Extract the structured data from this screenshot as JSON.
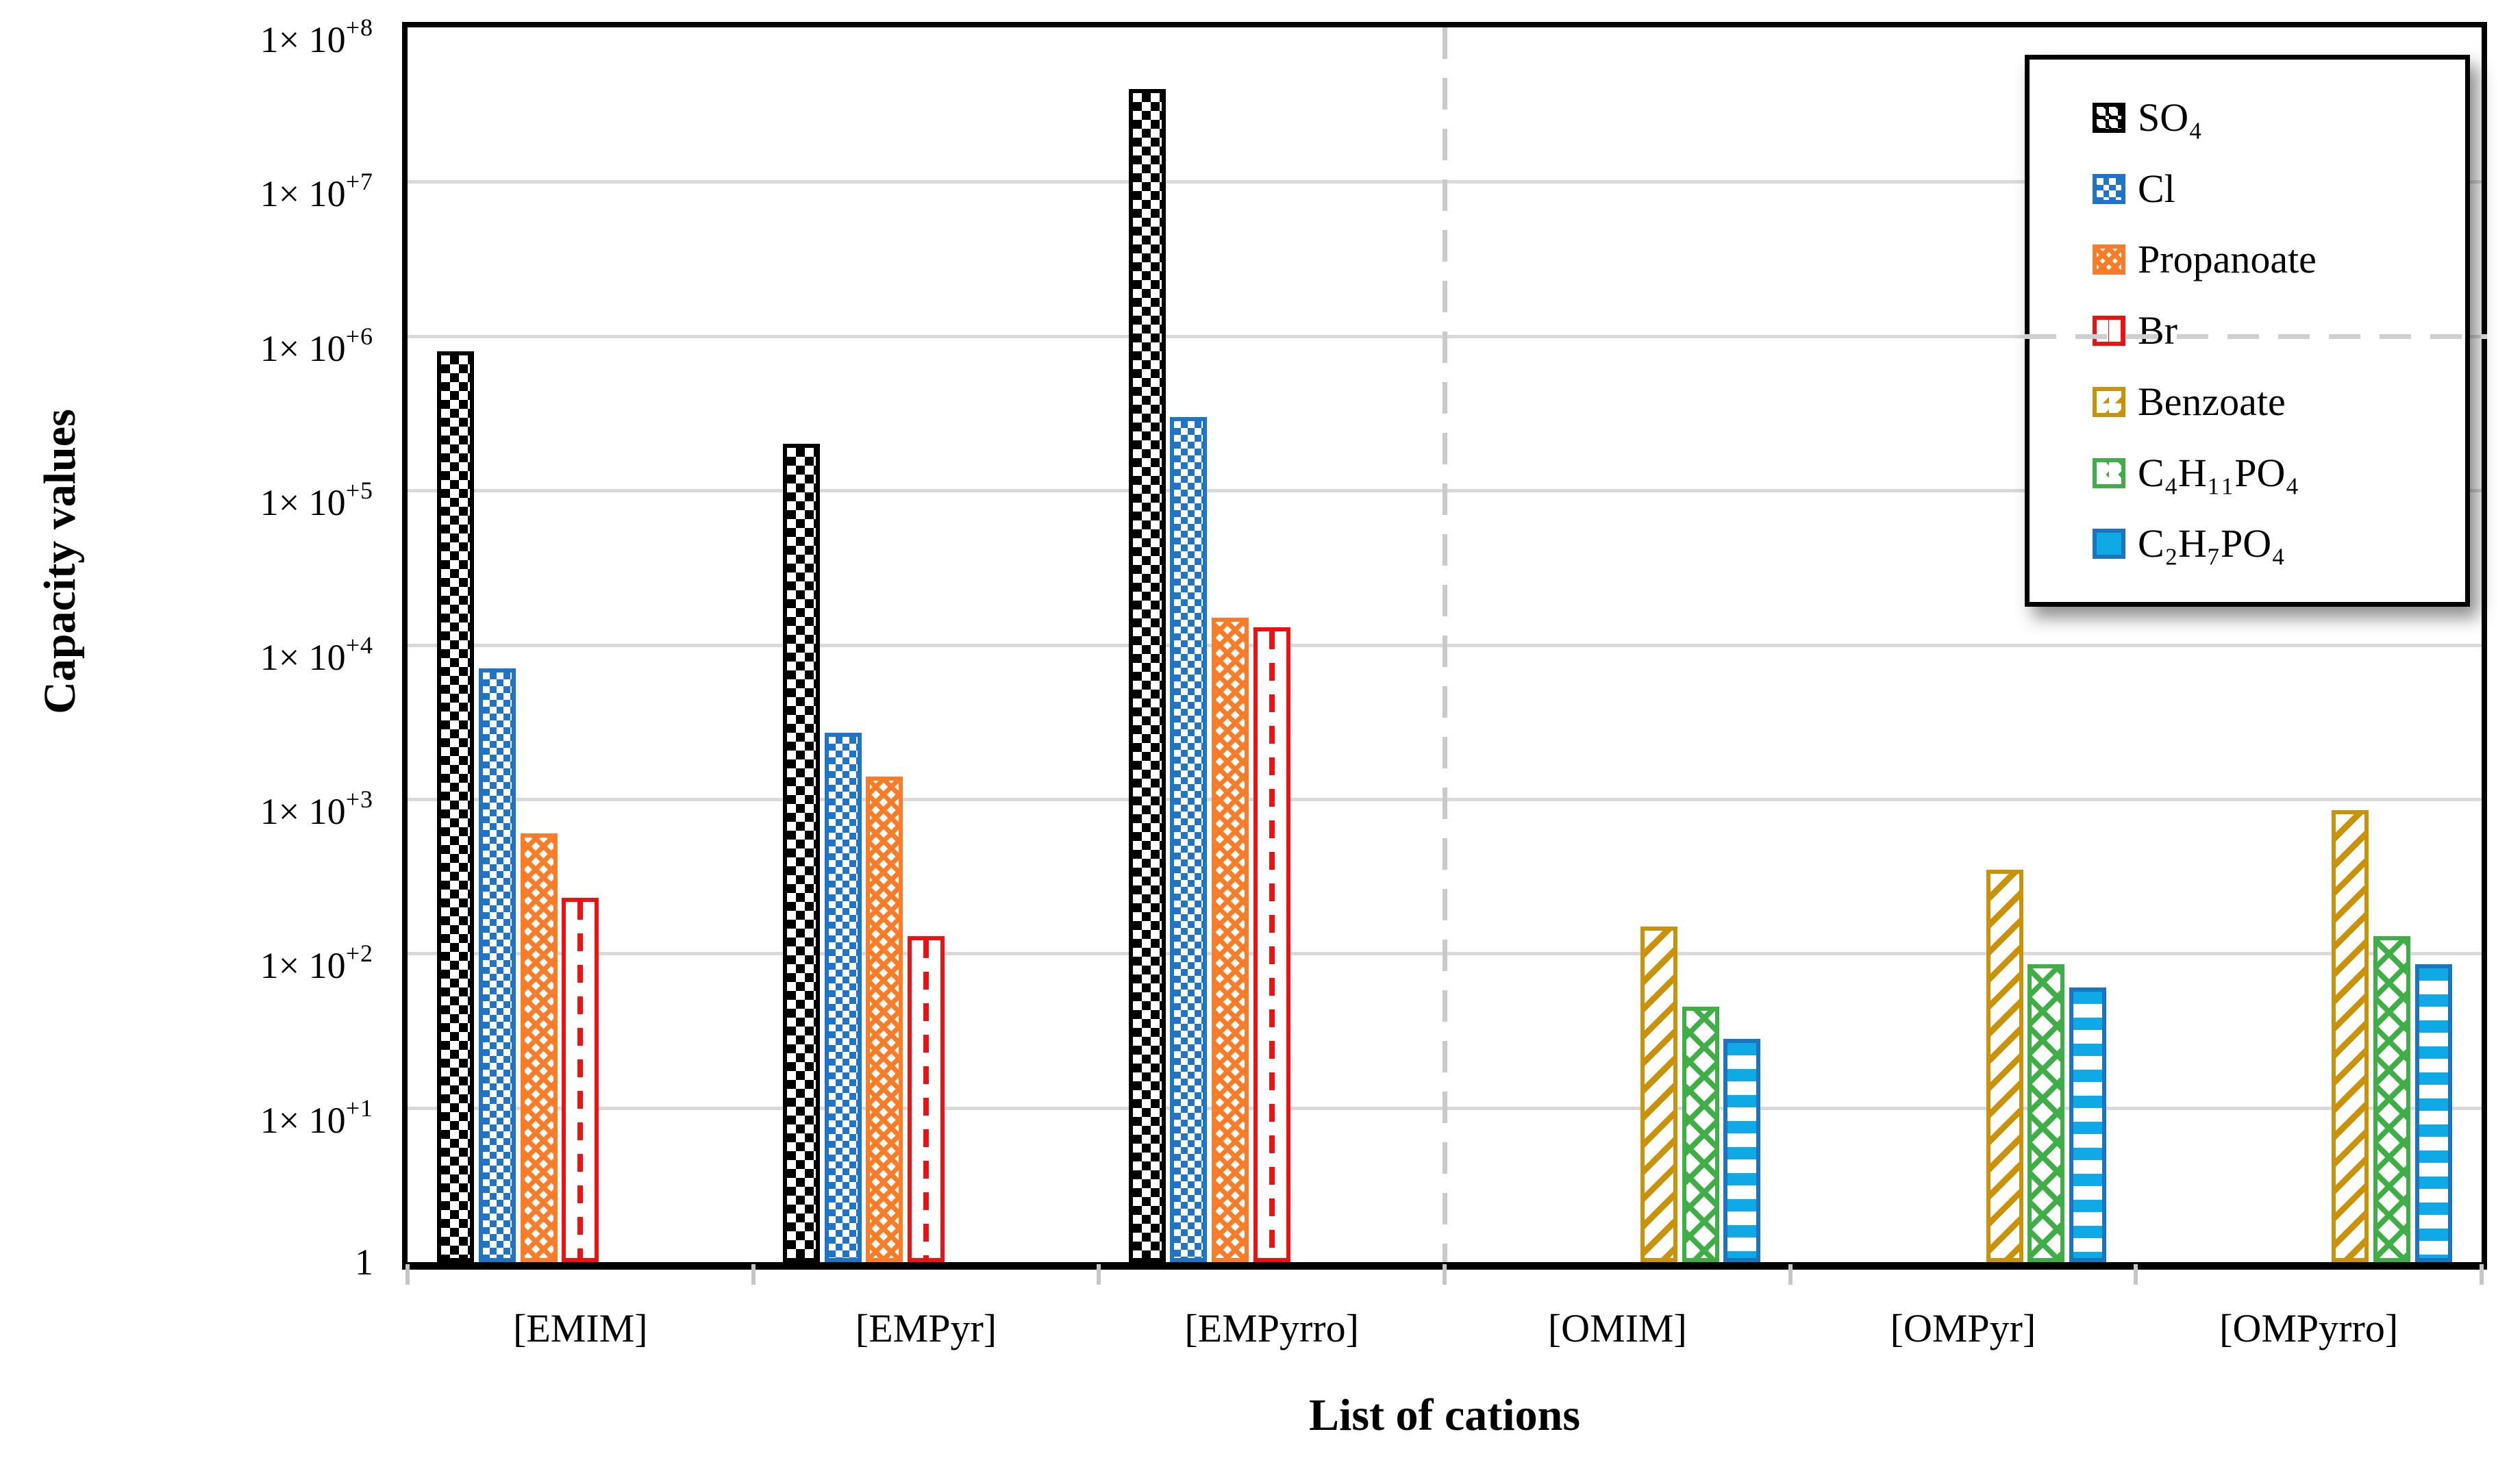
{
  "chart_data": {
    "type": "bar",
    "title": "",
    "xlabel": "List of cations",
    "ylabel": "Capacity values",
    "y_scale": "log",
    "ylim": [
      1,
      100000000
    ],
    "grid": "horizontal solid light-gray line at every decade",
    "legend_position": "top-right inside plot, white box with black border and drop shadow",
    "y_ticks": [
      {
        "text": "1× 10",
        "exp": "+8",
        "value": 100000000
      },
      {
        "text": "1× 10",
        "exp": "+7",
        "value": 10000000
      },
      {
        "text": "1× 10",
        "exp": "+6",
        "value": 1000000
      },
      {
        "text": "1× 10",
        "exp": "+5",
        "value": 100000
      },
      {
        "text": "1× 10",
        "exp": "+4",
        "value": 10000
      },
      {
        "text": "1× 10",
        "exp": "+3",
        "value": 1000
      },
      {
        "text": "1× 10",
        "exp": "+2",
        "value": 100
      },
      {
        "text": "1× 10",
        "exp": "+1",
        "value": 10
      },
      {
        "text": "1",
        "exp": "",
        "value": 1
      }
    ],
    "categories": [
      "[EMIM]",
      "[EMPyr]",
      "[EMPyrro]",
      "[OMIM]",
      "[OMPyr]",
      "[OMPyrro]"
    ],
    "series": [
      {
        "name": "SO₄",
        "key": "so4",
        "color": "#000000",
        "pattern": "black-white checkerboard",
        "values": [
          800000,
          200000,
          40000000,
          null,
          null,
          null
        ]
      },
      {
        "name": "Cl",
        "key": "cl",
        "color": "#1F74C8",
        "pattern": "blue checkerboard",
        "values": [
          7000,
          2700,
          300000,
          null,
          null,
          null
        ]
      },
      {
        "name": "Propanoate",
        "key": "propanoate",
        "color": "#F97C28",
        "pattern": "orange diagonal crosshatch",
        "values": [
          600,
          1400,
          15000,
          null,
          null,
          null
        ]
      },
      {
        "name": "Br",
        "key": "br",
        "color": "#EE1111",
        "pattern": "white fill, red border, red dashed vertical lines",
        "values": [
          230,
          130,
          13000,
          null,
          null,
          null
        ]
      },
      {
        "name": "Benzoate",
        "key": "benzoate",
        "color": "#C99208",
        "pattern": "gold diagonal stripes",
        "values": [
          null,
          null,
          null,
          150,
          350,
          850
        ]
      },
      {
        "name": "C₄H₁₁PO₄",
        "key": "c4h11po4",
        "color": "#3FAE46",
        "pattern": "green diagonal lattice",
        "values": [
          null,
          null,
          null,
          45,
          85,
          130
        ]
      },
      {
        "name": "C₂H₇PO₄",
        "key": "c2h7po4",
        "color": "#1B74BE",
        "pattern": "light-blue horizontal stripes with dark-blue border",
        "values": [
          null,
          null,
          null,
          28,
          60,
          85
        ]
      }
    ],
    "annotations": {
      "vertical_divider": "gray dashed vertical line separating [EMPyrro] and [OMIM] groups",
      "legend_dashed_gridline": "gray dashed horizontal segment at the 1×10+6 level crossing the legend box"
    }
  }
}
